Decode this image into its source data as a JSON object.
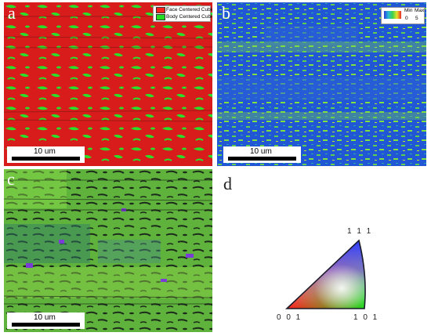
{
  "panels": {
    "a": {
      "label": "a",
      "scalebar": "10 um",
      "legend": [
        {
          "label": "Face Centered Cubic",
          "color": "#ff2020"
        },
        {
          "label": "Body Centered Cubic",
          "color": "#22dd22"
        }
      ]
    },
    "b": {
      "label": "b",
      "scalebar": "10 um",
      "kam_min_label": "Min",
      "kam_max_label": "Max",
      "kam_min_value": "0",
      "kam_max_value": "5"
    },
    "c": {
      "label": "c",
      "scalebar": "10 um"
    },
    "d": {
      "label": "d",
      "ipf": {
        "top": "1 1 1",
        "left": "0 0 1",
        "right": "1 0 1"
      }
    }
  },
  "colors": {
    "fcc": "#e52222",
    "bcc": "#21d421",
    "kam_low": "#1e55d6",
    "kam_high": "#7fe040",
    "ipf_bg": "#5fae3a",
    "ipf_boundary": "#1a1a2a"
  }
}
